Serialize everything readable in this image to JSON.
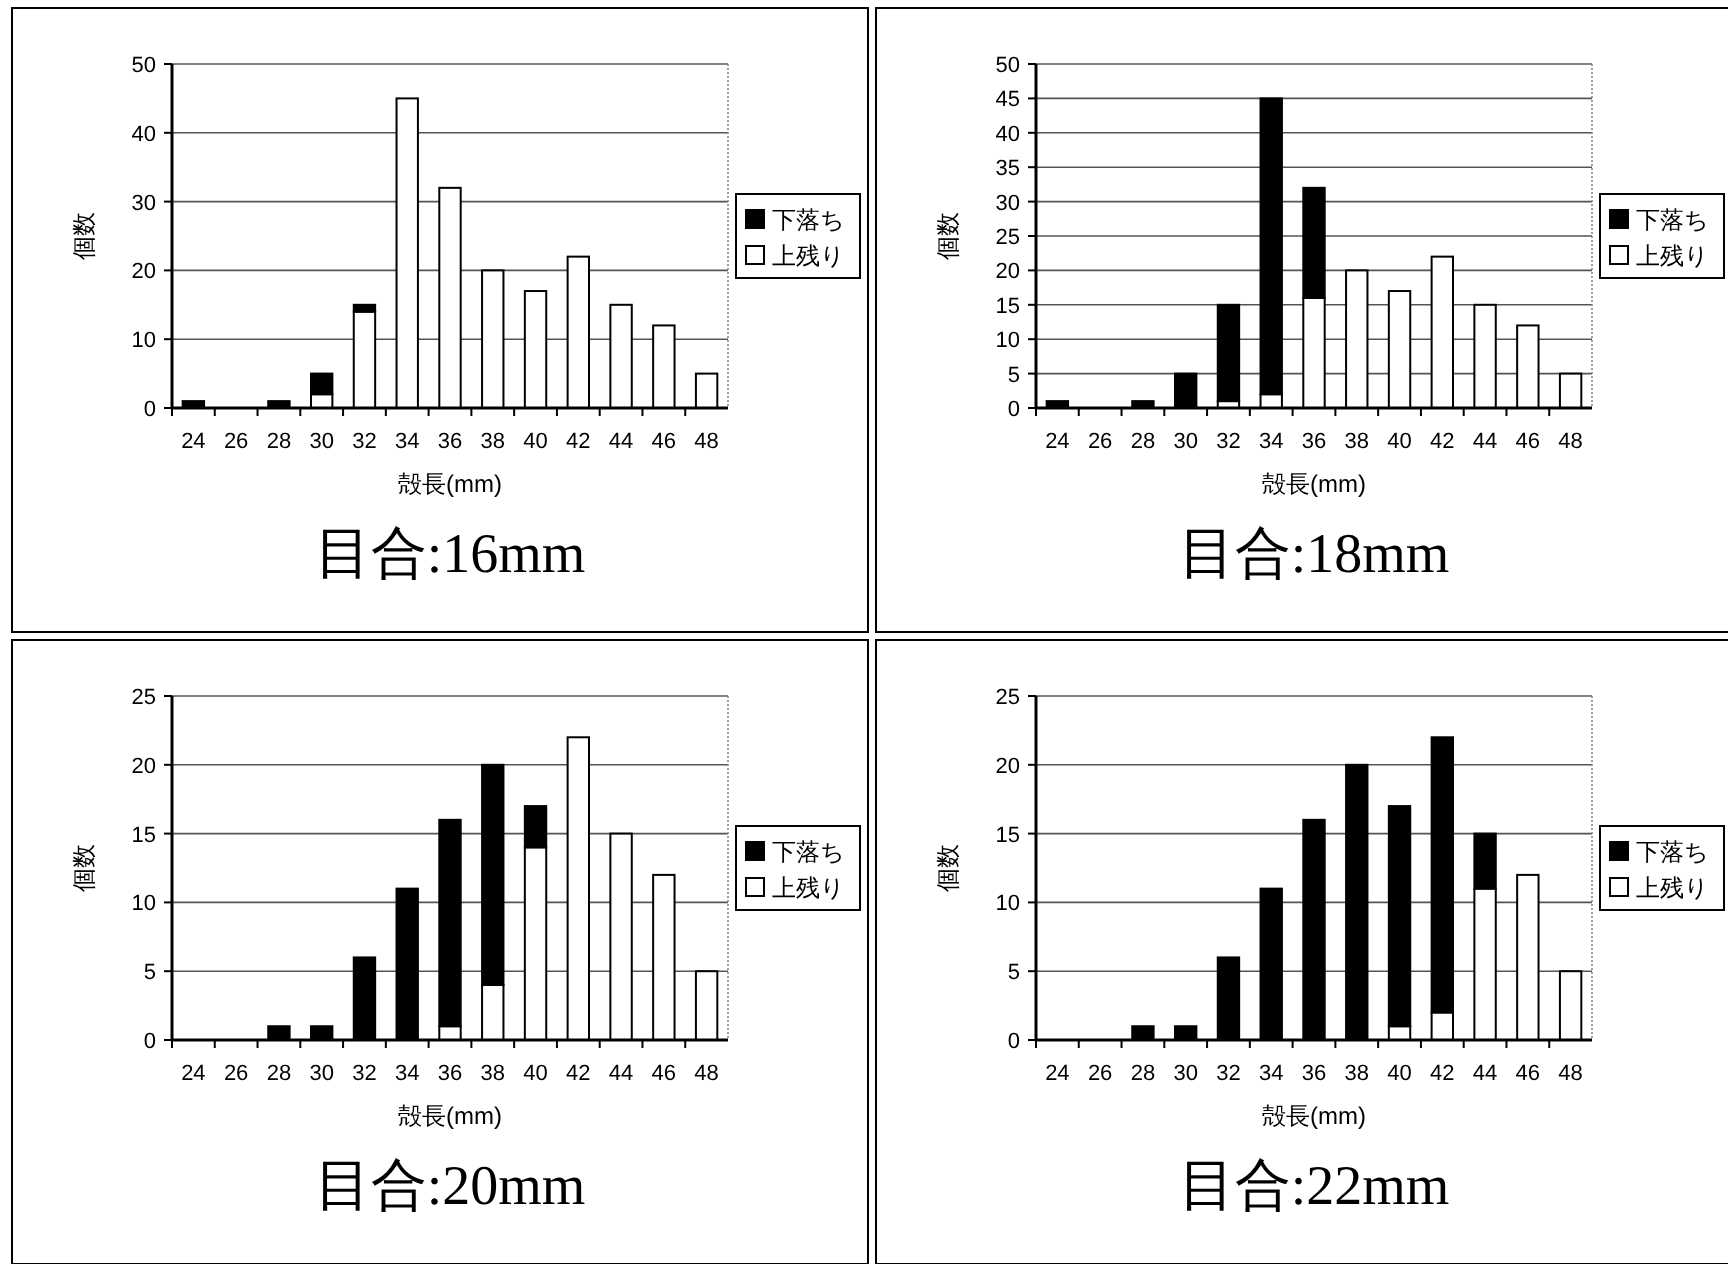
{
  "chart_data": [
    {
      "type": "bar",
      "title": "目合:16mm",
      "xlabel": "殻長(mm)",
      "ylabel": "個数",
      "categories": [
        "24",
        "26",
        "28",
        "30",
        "32",
        "34",
        "36",
        "38",
        "40",
        "42",
        "44",
        "46",
        "48"
      ],
      "stacked": true,
      "ylim": [
        0,
        50
      ],
      "yticks": [
        0,
        10,
        20,
        30,
        40,
        50
      ],
      "grid": "y",
      "legend": "right",
      "series": [
        {
          "name": "上残り",
          "color": "#ffffff",
          "values": [
            0,
            0,
            0,
            2,
            14,
            45,
            32,
            20,
            17,
            22,
            15,
            12,
            5
          ]
        },
        {
          "name": "下落ち",
          "color": "#000000",
          "values": [
            1,
            0,
            1,
            3,
            1,
            0,
            0,
            0,
            0,
            0,
            0,
            0,
            0
          ]
        }
      ]
    },
    {
      "type": "bar",
      "title": "目合:18mm",
      "xlabel": "殻長(mm)",
      "ylabel": "個数",
      "categories": [
        "24",
        "26",
        "28",
        "30",
        "32",
        "34",
        "36",
        "38",
        "40",
        "42",
        "44",
        "46",
        "48"
      ],
      "stacked": true,
      "ylim": [
        0,
        50
      ],
      "yticks": [
        0,
        5,
        10,
        15,
        20,
        25,
        30,
        35,
        40,
        45,
        50
      ],
      "grid": "y",
      "legend": "right",
      "series": [
        {
          "name": "上残り",
          "color": "#ffffff",
          "values": [
            0,
            0,
            0,
            0,
            1,
            2,
            16,
            20,
            17,
            22,
            15,
            12,
            5
          ]
        },
        {
          "name": "下落ち",
          "color": "#000000",
          "values": [
            1,
            0,
            1,
            5,
            14,
            43,
            16,
            0,
            0,
            0,
            0,
            0,
            0
          ]
        }
      ]
    },
    {
      "type": "bar",
      "title": "目合:20mm",
      "xlabel": "殻長(mm)",
      "ylabel": "個数",
      "categories": [
        "24",
        "26",
        "28",
        "30",
        "32",
        "34",
        "36",
        "38",
        "40",
        "42",
        "44",
        "46",
        "48"
      ],
      "stacked": true,
      "ylim": [
        0,
        25
      ],
      "yticks": [
        0,
        5,
        10,
        15,
        20,
        25
      ],
      "grid": "y",
      "legend": "right",
      "series": [
        {
          "name": "上残り",
          "color": "#ffffff",
          "values": [
            0,
            0,
            0,
            0,
            0,
            0,
            1,
            4,
            14,
            22,
            15,
            12,
            5
          ]
        },
        {
          "name": "下落ち",
          "color": "#000000",
          "values": [
            0,
            0,
            1,
            1,
            6,
            11,
            15,
            16,
            3,
            0,
            0,
            0,
            0
          ]
        }
      ]
    },
    {
      "type": "bar",
      "title": "目合:22mm",
      "xlabel": "殻長(mm)",
      "ylabel": "個数",
      "categories": [
        "24",
        "26",
        "28",
        "30",
        "32",
        "34",
        "36",
        "38",
        "40",
        "42",
        "44",
        "46",
        "48"
      ],
      "stacked": true,
      "ylim": [
        0,
        25
      ],
      "yticks": [
        0,
        5,
        10,
        15,
        20,
        25
      ],
      "grid": "y",
      "legend": "right",
      "series": [
        {
          "name": "上残り",
          "color": "#ffffff",
          "values": [
            0,
            0,
            0,
            0,
            0,
            0,
            0,
            0,
            1,
            2,
            11,
            12,
            5
          ]
        },
        {
          "name": "下落ち",
          "color": "#000000",
          "values": [
            0,
            0,
            1,
            1,
            6,
            11,
            16,
            20,
            16,
            20,
            4,
            0,
            0
          ]
        }
      ]
    }
  ]
}
